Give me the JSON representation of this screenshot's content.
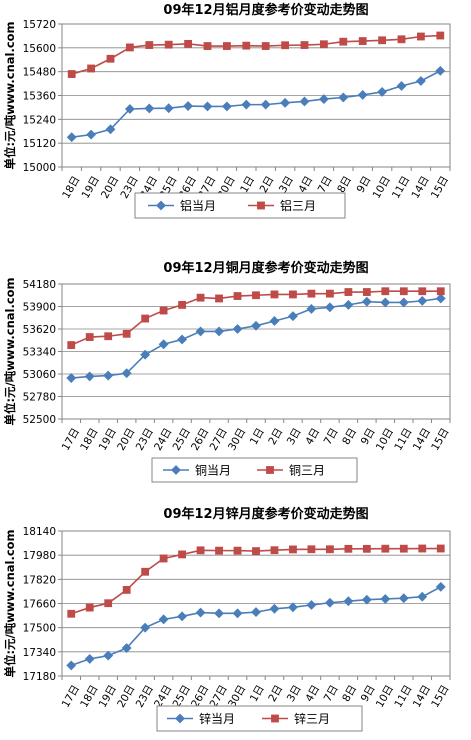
{
  "chart_data": [
    {
      "type": "line",
      "title": "09年12月铝月度参考价变动走势图",
      "ylabel": "单位:元/吨www.cnal.com",
      "ylim": [
        15000,
        15720
      ],
      "yticks": [
        15000,
        15120,
        15240,
        15360,
        15480,
        15600,
        15720
      ],
      "categories": [
        "18日",
        "19日",
        "20日",
        "23日",
        "24日",
        "25日",
        "26日",
        "27日",
        "30日",
        "1日",
        "2日",
        "3日",
        "4日",
        "7日",
        "8日",
        "9日",
        "10日",
        "11日",
        "14日",
        "15日"
      ],
      "grid": true,
      "legend": "bottom",
      "series": [
        {
          "name": "铝当月",
          "marker": "diamond",
          "color": "#4a7ebb",
          "values": [
            15150,
            15163,
            15190,
            15292,
            15295,
            15296,
            15307,
            15305,
            15305,
            15314,
            15314,
            15323,
            15330,
            15342,
            15350,
            15363,
            15378,
            15408,
            15433,
            15484
          ]
        },
        {
          "name": "铝三月",
          "marker": "square",
          "color": "#be4b48",
          "values": [
            15468,
            15496,
            15545,
            15602,
            15614,
            15616,
            15620,
            15609,
            15609,
            15611,
            15609,
            15613,
            15614,
            15618,
            15631,
            15634,
            15638,
            15643,
            15657,
            15662
          ]
        }
      ]
    },
    {
      "type": "line",
      "title": "09年12月铜月度参考价变动走势图",
      "ylabel": "单位:元/吨www.cnal.com",
      "ylim": [
        52500,
        54180
      ],
      "yticks": [
        52500,
        52780,
        53060,
        53340,
        53620,
        53900,
        54180
      ],
      "categories": [
        "17日",
        "18日",
        "19日",
        "20日",
        "23日",
        "24日",
        "25日",
        "26日",
        "27日",
        "30日",
        "1日",
        "2日",
        "3日",
        "4日",
        "7日",
        "8日",
        "9日",
        "10日",
        "11日",
        "14日",
        "15日"
      ],
      "grid": true,
      "legend": "bottom",
      "series": [
        {
          "name": "铜当月",
          "marker": "diamond",
          "color": "#4a7ebb",
          "values": [
            53010,
            53030,
            53040,
            53070,
            53300,
            53430,
            53490,
            53590,
            53590,
            53620,
            53660,
            53720,
            53780,
            53870,
            53890,
            53920,
            53960,
            53950,
            53950,
            53970,
            54000
          ]
        },
        {
          "name": "铜三月",
          "marker": "square",
          "color": "#be4b48",
          "values": [
            53420,
            53520,
            53530,
            53560,
            53750,
            53850,
            53920,
            54010,
            54000,
            54030,
            54040,
            54050,
            54050,
            54060,
            54060,
            54080,
            54080,
            54090,
            54090,
            54090,
            54090
          ]
        }
      ]
    },
    {
      "type": "line",
      "title": "09年12月锌月度参考价变动走势图",
      "ylabel": "单位:元/吨www.cnal.com",
      "ylim": [
        17180,
        18140
      ],
      "yticks": [
        17180,
        17340,
        17500,
        17660,
        17820,
        17980,
        18140
      ],
      "categories": [
        "17日",
        "18日",
        "19日",
        "20日",
        "23日",
        "24日",
        "25日",
        "26日",
        "27日",
        "30日",
        "1日",
        "2日",
        "3日",
        "4日",
        "7日",
        "8日",
        "9日",
        "10日",
        "11日",
        "14日",
        "15日"
      ],
      "grid": true,
      "legend": "bottom",
      "series": [
        {
          "name": "锌当月",
          "marker": "diamond",
          "color": "#4a7ebb",
          "values": [
            17250,
            17293,
            17315,
            17365,
            17500,
            17555,
            17575,
            17600,
            17595,
            17595,
            17603,
            17625,
            17635,
            17650,
            17665,
            17675,
            17685,
            17690,
            17695,
            17705,
            17770
          ]
        },
        {
          "name": "锌三月",
          "marker": "square",
          "color": "#be4b48",
          "values": [
            17592,
            17633,
            17662,
            17750,
            17870,
            17958,
            17985,
            18012,
            18010,
            18010,
            18007,
            18013,
            18018,
            18019,
            18019,
            18022,
            18022,
            18023,
            18023,
            18024,
            18024
          ]
        }
      ]
    }
  ]
}
